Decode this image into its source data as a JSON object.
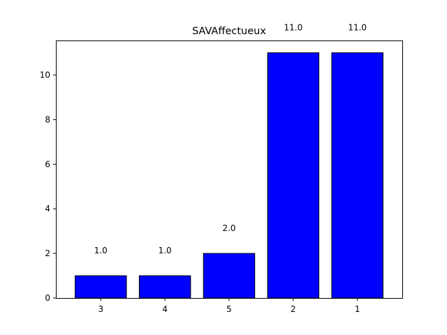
{
  "chart_data": {
    "type": "bar",
    "title": "SAVAffectueux",
    "xlabel": "",
    "ylabel": "",
    "categories": [
      "3",
      "4",
      "5",
      "2",
      "1"
    ],
    "values": [
      1.0,
      1.0,
      2.0,
      11.0,
      11.0
    ],
    "data_labels": [
      "1.0",
      "1.0",
      "2.0",
      "11.0",
      "11.0"
    ],
    "yticks": [
      0,
      2,
      4,
      6,
      8,
      10
    ],
    "ylim": [
      0,
      11.55
    ],
    "grid": false,
    "bar_color": "#0000ff",
    "edge_color": "#000000"
  }
}
